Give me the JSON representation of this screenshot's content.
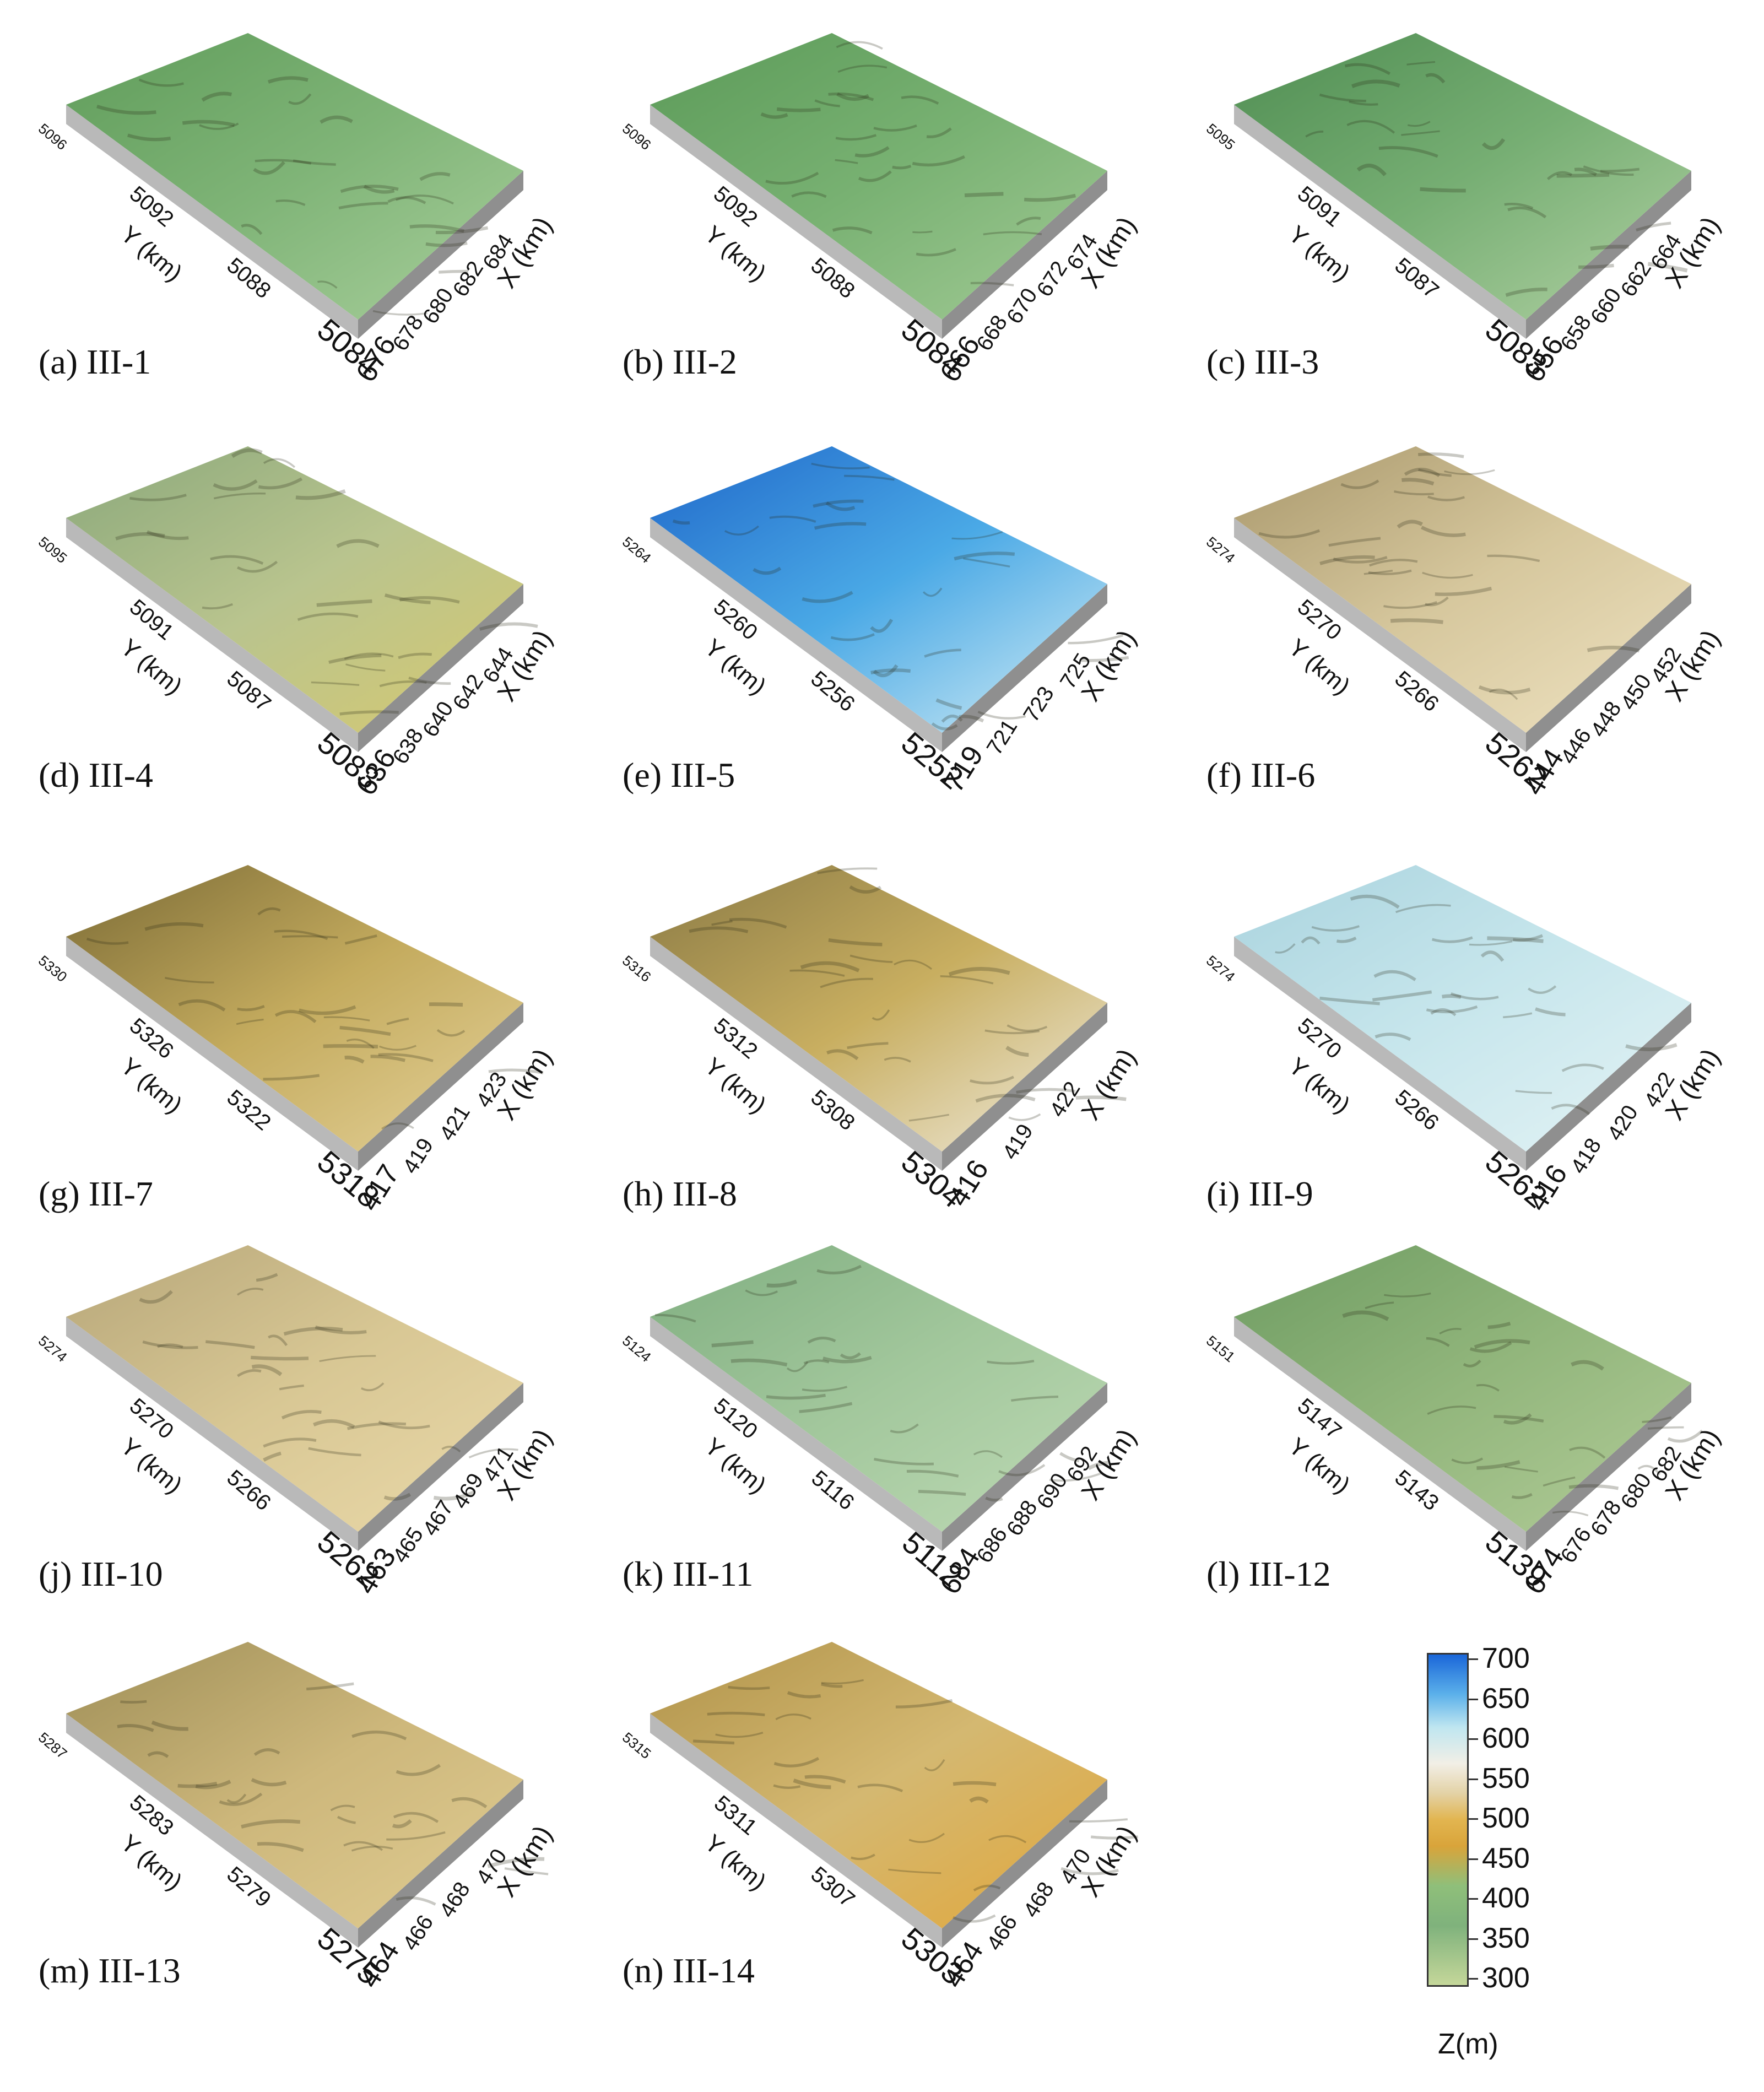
{
  "panels": [
    {
      "caption": "(a) III-1",
      "y_ticks": [
        "5096",
        "5092",
        "5088",
        "5084"
      ],
      "x_ticks": [
        "676",
        "678",
        "680",
        "682",
        "684"
      ],
      "y_label": "Y (km)",
      "x_label": "X (km)",
      "colors": [
        "#5f9c5a",
        "#7fb477",
        "#a9cf9c"
      ]
    },
    {
      "caption": "(b) III-2",
      "y_ticks": [
        "5096",
        "5092",
        "5088",
        "5084"
      ],
      "x_ticks": [
        "666",
        "668",
        "670",
        "672",
        "674"
      ],
      "y_label": "Y (km)",
      "x_label": "X (km)",
      "colors": [
        "#5b9a58",
        "#78b172",
        "#a3cb96"
      ]
    },
    {
      "caption": "(c) III-3",
      "y_ticks": [
        "5095",
        "5091",
        "5087",
        "5083"
      ],
      "x_ticks": [
        "656",
        "658",
        "660",
        "662",
        "664"
      ],
      "y_label": "Y (km)",
      "x_label": "X (km)",
      "colors": [
        "#4f8d52",
        "#76ae73",
        "#b1d1a3"
      ]
    },
    {
      "caption": "(d) III-4",
      "y_ticks": [
        "5095",
        "5091",
        "5087",
        "5083"
      ],
      "x_ticks": [
        "636",
        "638",
        "640",
        "642",
        "644"
      ],
      "y_label": "Y (km)",
      "x_label": "X (km)",
      "colors": [
        "#8aa87b",
        "#b9c48e",
        "#d7c970"
      ]
    },
    {
      "caption": "(e) III-5",
      "y_ticks": [
        "5264",
        "5260",
        "5256",
        "5252"
      ],
      "x_ticks": [
        "719",
        "721",
        "723",
        "725"
      ],
      "y_label": "Y (km)",
      "x_label": "X (km)",
      "colors": [
        "#1f67c9",
        "#4aa9e6",
        "#d5eef4"
      ]
    },
    {
      "caption": "(f) III-6",
      "y_ticks": [
        "5274",
        "5270",
        "5266",
        "5262"
      ],
      "x_ticks": [
        "444",
        "446",
        "448",
        "450",
        "452"
      ],
      "y_label": "Y (km)",
      "x_label": "X (km)",
      "colors": [
        "#a8976b",
        "#d6c79d",
        "#efe3c2"
      ]
    },
    {
      "caption": "(g) III-7",
      "y_ticks": [
        "5330",
        "5326",
        "5322",
        "5318"
      ],
      "x_ticks": [
        "417",
        "419",
        "421",
        "423"
      ],
      "y_label": "Y (km)",
      "x_label": "X (km)",
      "colors": [
        "#7a6a35",
        "#c4ab5e",
        "#e5d29a"
      ]
    },
    {
      "caption": "(h) III-8",
      "y_ticks": [
        "5316",
        "5312",
        "5308",
        "5304"
      ],
      "x_ticks": [
        "416",
        "419",
        "422"
      ],
      "y_label": "Y (km)",
      "x_label": "X (km)",
      "colors": [
        "#8a7a45",
        "#c8ae60",
        "#f0ece0"
      ]
    },
    {
      "caption": "(i) III-9",
      "y_ticks": [
        "5274",
        "5270",
        "5266",
        "5262"
      ],
      "x_ticks": [
        "416",
        "418",
        "420",
        "422"
      ],
      "y_label": "Y (km)",
      "x_label": "X (km)",
      "colors": [
        "#a9d3de",
        "#c7e6ec",
        "#e4f3f5"
      ]
    },
    {
      "caption": "(j) III-10",
      "y_ticks": [
        "5274",
        "5270",
        "5266",
        "5262"
      ],
      "x_ticks": [
        "463",
        "465",
        "467",
        "469",
        "471"
      ],
      "y_label": "Y (km)",
      "x_label": "X (km)",
      "colors": [
        "#b6a679",
        "#d8c794",
        "#ead9a9"
      ]
    },
    {
      "caption": "(k) III-11",
      "y_ticks": [
        "5124",
        "5120",
        "5116",
        "5112"
      ],
      "x_ticks": [
        "684",
        "686",
        "688",
        "690",
        "692"
      ],
      "y_label": "Y (km)",
      "x_label": "X (km)",
      "colors": [
        "#7fae80",
        "#a2c79c",
        "#bedab5"
      ]
    },
    {
      "caption": "(l) III-12",
      "y_ticks": [
        "5151",
        "5147",
        "5143",
        "5139"
      ],
      "x_ticks": [
        "674",
        "676",
        "678",
        "680",
        "682"
      ],
      "y_label": "Y (km)",
      "x_label": "X (km)",
      "colors": [
        "#6e9c62",
        "#92b67c",
        "#b2cc98"
      ]
    },
    {
      "caption": "(m) III-13",
      "y_ticks": [
        "5287",
        "5283",
        "5279",
        "5275"
      ],
      "x_ticks": [
        "464",
        "466",
        "468",
        "470"
      ],
      "y_label": "Y (km)",
      "x_label": "X (km)",
      "colors": [
        "#9e8e57",
        "#cdb77b",
        "#e1cd93"
      ]
    },
    {
      "caption": "(n) III-14",
      "y_ticks": [
        "5315",
        "5311",
        "5307",
        "5303"
      ],
      "x_ticks": [
        "464",
        "466",
        "468",
        "470"
      ],
      "y_label": "Y (km)",
      "x_label": "X (km)",
      "colors": [
        "#b0934a",
        "#d4b871",
        "#e2a73a"
      ]
    }
  ],
  "colorbar": {
    "ticks": [
      "700",
      "650",
      "600",
      "550",
      "500",
      "450",
      "400",
      "350",
      "300"
    ],
    "title": "Z(m)"
  }
}
